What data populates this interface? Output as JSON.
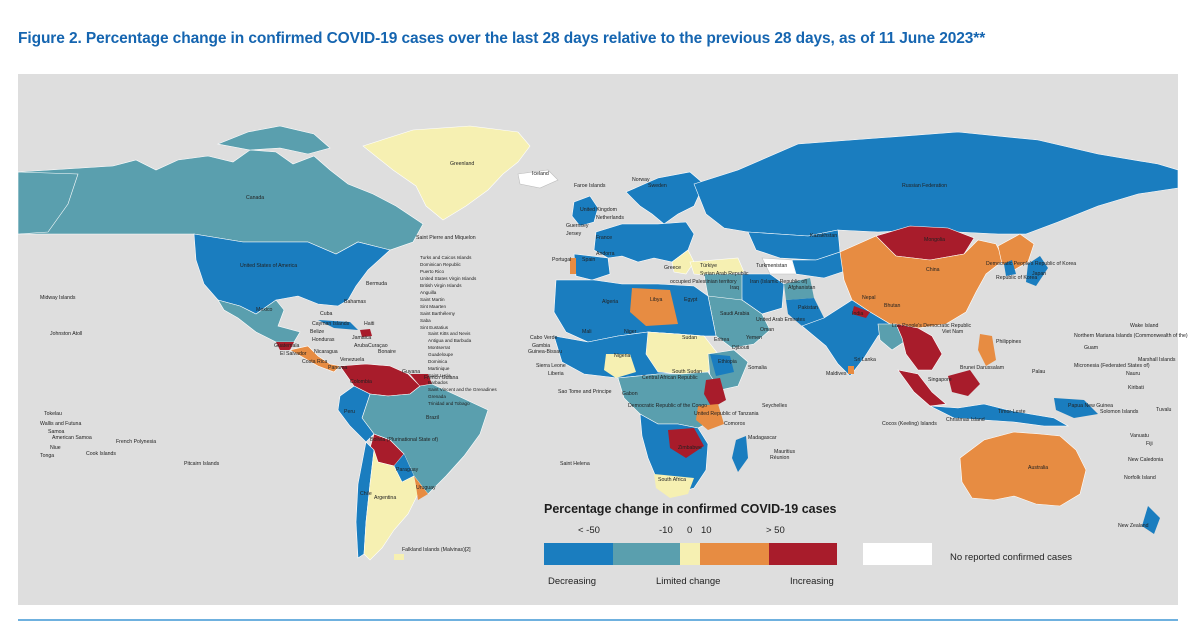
{
  "figure": {
    "title": "Figure 2. Percentage change in confirmed COVID-19 cases over the last 28 days relative to the previous 28 days, as of 11 June 2023**"
  },
  "colors": {
    "ocean": "#dedede",
    "decreasing": "#1a7dbf",
    "limited_low": "#5a9fae",
    "limited_mid": "#f6f0b2",
    "limited_high": "#e78c42",
    "increasing": "#a81c2b",
    "no_data": "#ffffff",
    "title": "#1565b0"
  },
  "legend": {
    "title": "Percentage change in confirmed COVID-19 cases",
    "ticks": [
      "< -50",
      "-10",
      "0",
      "10",
      "> 50"
    ],
    "caption_decreasing": "Decreasing",
    "caption_limited": "Limited change",
    "caption_increasing": "Increasing",
    "no_data_label": "No reported confirmed cases"
  },
  "map_labels": {
    "greenland": "Greenland",
    "iceland": "Iceland",
    "canada": "Canada",
    "usa": "United States of America",
    "mexico": "Mexico",
    "st_pierre": "Saint Pierre and Miquelon",
    "bermuda": "Bermuda",
    "bahamas": "Bahamas",
    "cuba": "Cuba",
    "cayman": "Cayman Islands",
    "belize": "Belize",
    "honduras": "Honduras",
    "guatemala": "Guatemala",
    "el_salvador": "El Salvador",
    "nicaragua": "Nicaragua",
    "costa_rica": "Costa Rica",
    "panama": "Panama",
    "jamaica": "Jamaica",
    "haiti": "Haiti",
    "aruba": "Aruba",
    "curacao": "Curaçao",
    "bonaire": "Bonaire",
    "venezuela": "Venezuela",
    "colombia": "Colombia",
    "guyana": "Guyana",
    "french_guiana": "French Guiana",
    "brazil": "Brazil",
    "peru": "Peru",
    "bolivia": "Bolivia (Plurinational State of)",
    "paraguay": "Paraguay",
    "chile": "Chile",
    "argentina": "Argentina",
    "uruguay": "Uruguay",
    "falkland": "Falkland Islands (Malvinas)[2]",
    "caribbean_list": [
      "Turks and Caicos Islands",
      "Dominican Republic",
      "Puerto Rico",
      "United States Virgin Islands",
      "British Virgin Islands",
      "Anguilla",
      "Saint Martin",
      "Sint Maarten",
      "Saint Barthélemy",
      "Saba",
      "Sint Eustatius"
    ],
    "caribbean_list_2": [
      "Saint Kitts and Nevis",
      "Antigua and Barbuda",
      "Montserrat",
      "Guadeloupe",
      "Dominica",
      "Martinique",
      "Saint Lucia",
      "Barbados",
      "Saint Vincent and the Grenadines",
      "Grenada",
      "Trinidad and Tobago"
    ],
    "midway": "Midway Islands",
    "johnston": "Johnston Atoll",
    "tokelau": "Tokelau",
    "wallis": "Wallis and Futuna",
    "samoa": "Samoa",
    "american_samoa": "American Samoa",
    "niue": "Niue",
    "tonga": "Tonga",
    "cook": "Cook Islands",
    "french_polynesia": "French Polynesia",
    "pitcairn": "Pitcairn Islands",
    "faroe": "Faroe Islands",
    "norway": "Norway",
    "sweden": "Sweden",
    "uk": "United Kingdom",
    "netherlands": "Netherlands",
    "guernsey": "Guernsey",
    "jersey": "Jersey",
    "france": "France",
    "spain": "Spain",
    "portugal": "Portugal",
    "andorra": "Andorra",
    "greece": "Greece",
    "turkiye": "Türkiye",
    "syria": "Syrian Arab Republic",
    "opt": "occupied Palestinian territory",
    "iraq": "Iraq",
    "iran": "Iran (Islamic Republic of)",
    "afghanistan": "Afghanistan",
    "pakistan": "Pakistan",
    "kazakhstan": "Kazakhstan",
    "turkmenistan": "Turkmenistan",
    "russia": "Russian Federation",
    "mongolia": "Mongolia",
    "china": "China",
    "dprk": "Democratic People's Republic of Korea",
    "rok": "Republic of Korea",
    "japan": "Japan",
    "nepal": "Nepal",
    "bhutan": "Bhutan",
    "india": "India",
    "lao": "Lao People's Democratic Republic",
    "viet_nam": "Viet Nam",
    "philippines": "Philippines",
    "sri_lanka": "Sri Lanka",
    "maldives": "Maldives",
    "singapore": "Singapore",
    "brunei": "Brunei Darussalam",
    "timor": "Timor-Leste",
    "png": "Papua New Guinea",
    "solomon": "Solomon Islands",
    "vanuatu": "Vanuatu",
    "fiji": "Fiji",
    "new_caledonia": "New Caledonia",
    "norfolk": "Norfolk Island",
    "new_zealand": "New Zealand",
    "australia": "Australia",
    "christmas": "Christmas Island",
    "cocos": "Cocos (Keeling) Islands",
    "palau": "Palau",
    "guam": "Guam",
    "northern_mariana": "Northern Mariana Islands (Commonwealth of the)",
    "wake": "Wake Island",
    "micronesia": "Micronesia (Federated States of)",
    "marshall": "Marshall Islands",
    "nauru": "Nauru",
    "kiribati": "Kiribati",
    "tuvalu": "Tuvalu",
    "uae": "United Arab Emirates",
    "oman": "Oman",
    "yemen": "Yemen",
    "saudi": "Saudi Arabia",
    "egypt": "Egypt",
    "libya": "Libya",
    "algeria": "Algeria",
    "mali": "Mali",
    "niger": "Niger",
    "sudan": "Sudan",
    "eritrea": "Eritrea",
    "djibouti": "Djibouti",
    "ethiopia": "Ethiopia",
    "somalia": "Somalia",
    "south_sudan": "South Sudan",
    "car": "Central African Republic",
    "nigeria": "Nigeria",
    "cabo_verde": "Cabo Verde",
    "gambia": "Gambia",
    "guinea_bissau": "Guinea-Bissau",
    "sierra_leone": "Sierra Leone",
    "liberia": "Liberia",
    "stp": "Sao Tome and Principe",
    "gabon": "Gabon",
    "drc": "Democratic Republic of the Congo",
    "tanzania": "United Republic of Tanzania",
    "seychelles": "Seychelles",
    "comoros": "Comoros",
    "madagascar": "Madagascar",
    "mauritius": "Mauritius",
    "reunion": "Réunion",
    "zimbabwe": "Zimbabwe",
    "south_africa": "South Africa",
    "st_helena": "Saint Helena"
  }
}
